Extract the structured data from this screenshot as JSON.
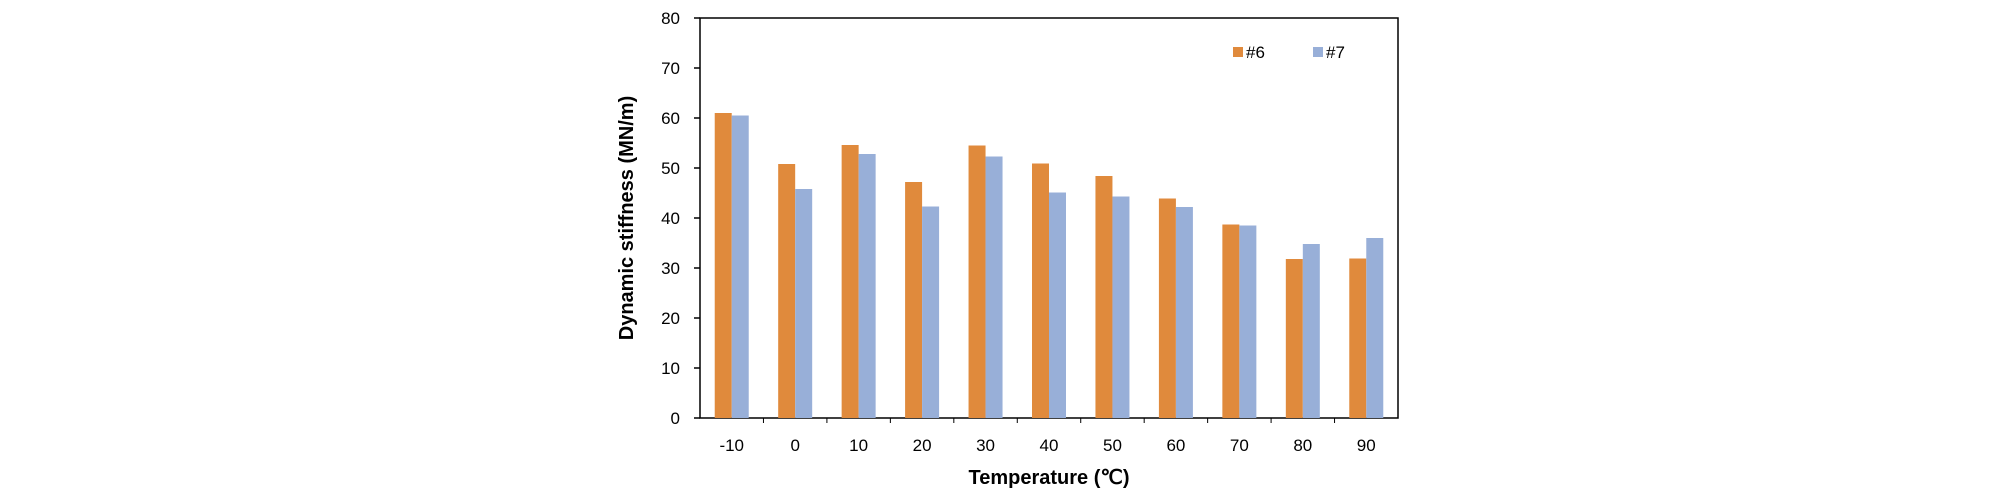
{
  "chart_data": {
    "type": "bar",
    "categories": [
      "-10",
      "0",
      "10",
      "20",
      "30",
      "40",
      "50",
      "60",
      "70",
      "80",
      "90"
    ],
    "series": [
      {
        "name": "#6",
        "values": [
          61,
          50.8,
          54.6,
          47.2,
          54.5,
          50.9,
          48.4,
          43.9,
          38.7,
          31.8,
          31.9
        ],
        "color": "#e08a3c"
      },
      {
        "name": "#7",
        "values": [
          60.5,
          45.8,
          52.8,
          42.3,
          52.3,
          45.1,
          44.3,
          42.2,
          38.5,
          34.8,
          36
        ],
        "color": "#98afd8"
      }
    ],
    "xlabel": "Temperature (℃)",
    "ylabel": "Dynamic stiffness (MN/m)",
    "ylim": [
      0,
      80
    ],
    "yticks": [
      "0",
      "10",
      "20",
      "30",
      "40",
      "50",
      "60",
      "70",
      "80"
    ],
    "grid": false,
    "legend_position": "top-right"
  }
}
